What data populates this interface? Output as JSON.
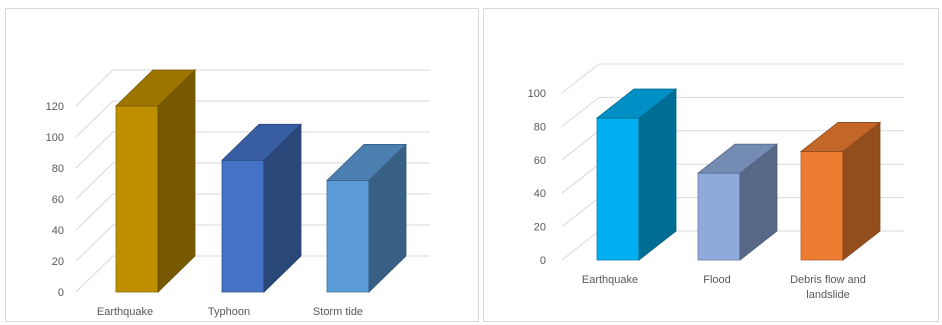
{
  "chart_data": [
    {
      "type": "bar",
      "style": "3d-column",
      "categories": [
        "Earthquake",
        "Typhoon",
        "Storm tide"
      ],
      "values": [
        120,
        85,
        72
      ],
      "colors": [
        "#BF8F00",
        "#4472C4",
        "#5B9BD5"
      ],
      "ylim": [
        0,
        120
      ],
      "yticks": [
        0,
        20,
        40,
        60,
        80,
        100,
        120
      ],
      "grid": true,
      "title": "",
      "xlabel": "",
      "ylabel": ""
    },
    {
      "type": "bar",
      "style": "3d-column",
      "categories": [
        "Earthquake",
        "Flood",
        "Debris flow and landslide"
      ],
      "values": [
        85,
        52,
        65
      ],
      "colors": [
        "#00B0F0",
        "#8EA9DB",
        "#ED7D31"
      ],
      "ylim": [
        0,
        100
      ],
      "yticks": [
        0,
        20,
        40,
        60,
        80,
        100
      ],
      "grid": true,
      "title": "",
      "xlabel": "",
      "ylabel": ""
    }
  ]
}
